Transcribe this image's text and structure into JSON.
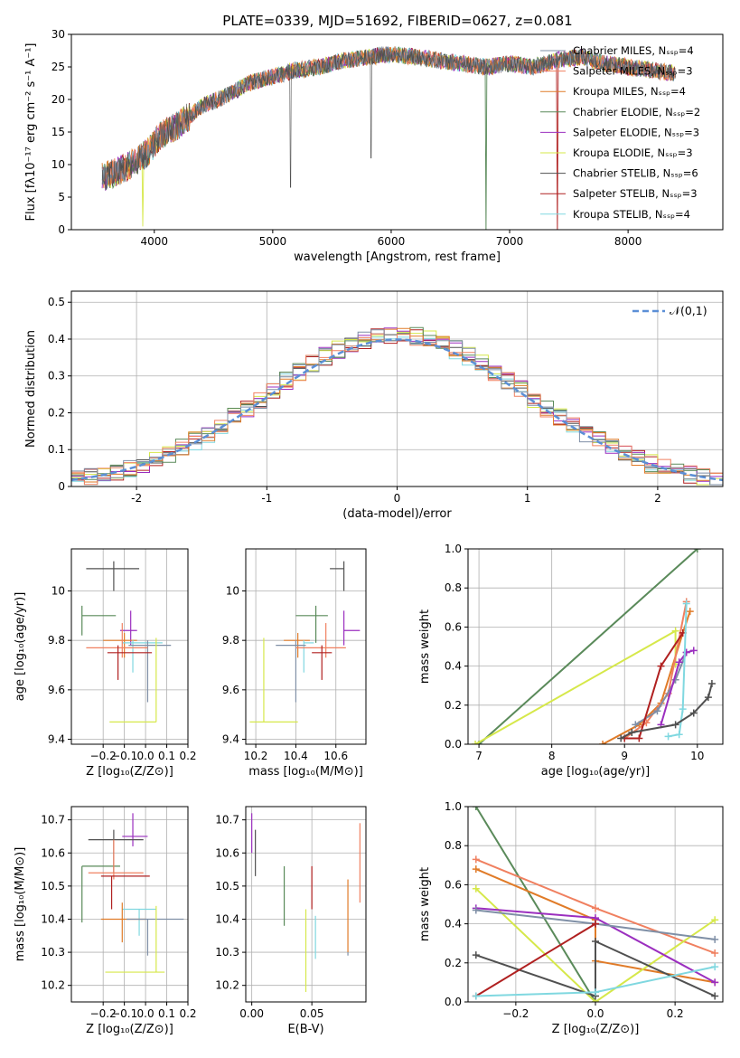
{
  "title": "PLATE=0339, MJD=51692, FIBERID=0627, z=0.081",
  "colors": {
    "grid": "#b0b0b0",
    "series": [
      "#7f8fa6",
      "#f08060",
      "#e07b28",
      "#5a8a5a",
      "#9b2fbf",
      "#d6e84a",
      "#505050",
      "#b02020",
      "#80d8e0"
    ],
    "normal_line": "#5b8fd6"
  },
  "chart_data": [
    {
      "id": "spectrum",
      "type": "line",
      "xlabel": "wavelength [Angstrom, rest frame]",
      "ylabel": "Flux [fλ10⁻¹⁷ erg cm⁻² s⁻¹ A⁻¹]",
      "xlim": [
        3300,
        8800
      ],
      "ylim": [
        0,
        30
      ],
      "xticks": [
        4000,
        5000,
        6000,
        7000,
        8000
      ],
      "yticks": [
        0,
        5,
        10,
        15,
        20,
        25,
        30
      ],
      "legend_placement": "upper right",
      "series": [
        {
          "name": "Chabrier MILES, N_SSP=4"
        },
        {
          "name": "Salpeter MILES, N_SSP=3"
        },
        {
          "name": "Kroupa MILES, N_SSP=4"
        },
        {
          "name": "Chabrier ELODIE, N_SSP=2"
        },
        {
          "name": "Salpeter ELODIE, N_SSP=3"
        },
        {
          "name": "Kroupa ELODIE, N_SSP=3"
        },
        {
          "name": "Chabrier STELIB, N_SSP=6"
        },
        {
          "name": "Salpeter STELIB, N_SSP=3"
        },
        {
          "name": "Kroupa STELIB, N_SSP=4"
        }
      ],
      "continuum": [
        [
          3560,
          8
        ],
        [
          3700,
          9
        ],
        [
          3850,
          10.5
        ],
        [
          3950,
          12
        ],
        [
          4050,
          14.5
        ],
        [
          4200,
          16
        ],
        [
          4400,
          19
        ],
        [
          4600,
          20.5
        ],
        [
          4800,
          22.5
        ],
        [
          5000,
          23.5
        ],
        [
          5200,
          24.5
        ],
        [
          5400,
          25
        ],
        [
          5600,
          26
        ],
        [
          5800,
          26.5
        ],
        [
          6000,
          27
        ],
        [
          6200,
          26.5
        ],
        [
          6400,
          26
        ],
        [
          6600,
          25.5
        ],
        [
          6800,
          25
        ],
        [
          7000,
          25.5
        ],
        [
          7200,
          25
        ],
        [
          7400,
          26
        ],
        [
          7600,
          26.5
        ],
        [
          7800,
          25.5
        ],
        [
          8000,
          25
        ],
        [
          8200,
          24.5
        ],
        [
          8400,
          24
        ]
      ],
      "data_line_range": [
        3560,
        8400
      ]
    },
    {
      "id": "residual_hist",
      "type": "area",
      "xlabel": "(data-model)/error",
      "ylabel": "Normed distribution",
      "xlim": [
        -2.5,
        2.5
      ],
      "ylim": [
        0,
        0.53
      ],
      "xticks": [
        -2,
        -1,
        0,
        1,
        2
      ],
      "yticks": [
        0.0,
        0.1,
        0.2,
        0.3,
        0.4,
        0.5
      ],
      "legend": "𝒩(0,1)",
      "legend_placement": "upper right",
      "bin_width": 0.1,
      "bins_from": -2.5,
      "bins_to": 2.5
    },
    {
      "id": "age_vs_Z",
      "type": "scatter",
      "xlabel": "Z [log₁₀(Z/Z⊙)]",
      "ylabel": "age  [log₁₀(age/yr)]",
      "xlim": [
        -0.35,
        0.2
      ],
      "ylim": [
        9.38,
        10.17
      ],
      "xticks": [
        -0.2,
        -0.1,
        0.0,
        0.1,
        0.2
      ],
      "xticklabels": [
        "−0.2",
        "−0.1",
        "0.0",
        "0.1",
        "0.2"
      ],
      "yticks": [
        9.4,
        9.6,
        9.8,
        10.0
      ],
      "errorbars": [
        {
          "color": 6,
          "x": -0.15,
          "xerr": [
            0.13,
            0.12
          ],
          "y": 10.09,
          "yerr": [
            0.09,
            0.03
          ]
        },
        {
          "color": 3,
          "x": -0.3,
          "xerr": [
            0,
            0.16
          ],
          "y": 9.9,
          "yerr": [
            0.08,
            0.04
          ]
        },
        {
          "color": 4,
          "x": -0.07,
          "xerr": [
            0.05,
            0.03
          ],
          "y": 9.84,
          "yerr": [
            0.06,
            0.08
          ]
        },
        {
          "color": 2,
          "x": -0.1,
          "xerr": [
            0.1,
            0.06
          ],
          "y": 9.8,
          "yerr": [
            0.07,
            0.03
          ]
        },
        {
          "color": 8,
          "x": -0.06,
          "xerr": [
            0.05,
            0.14
          ],
          "y": 9.79,
          "yerr": [
            0.12,
            0.01
          ]
        },
        {
          "color": 0,
          "x": 0.01,
          "xerr": [
            0.09,
            0.11
          ],
          "y": 9.78,
          "yerr": [
            0.23,
            0.02
          ]
        },
        {
          "color": 1,
          "x": -0.11,
          "xerr": [
            0.17,
            0.12
          ],
          "y": 9.77,
          "yerr": [
            0.04,
            0.1
          ]
        },
        {
          "color": 7,
          "x": -0.13,
          "xerr": [
            0.05,
            0.16
          ],
          "y": 9.75,
          "yerr": [
            0.11,
            0.03
          ]
        },
        {
          "color": 5,
          "x": 0.05,
          "xerr": [
            0.22,
            0
          ],
          "y": 9.47,
          "yerr": [
            0,
            0.34
          ]
        }
      ]
    },
    {
      "id": "age_vs_mass",
      "type": "scatter",
      "xlabel": "mass [log₁₀(M/M⊙)]",
      "xlim": [
        10.15,
        10.75
      ],
      "ylim": [
        9.38,
        10.17
      ],
      "xticks": [
        10.2,
        10.4,
        10.6
      ],
      "yticks": [
        9.4,
        9.6,
        9.8,
        10.0
      ],
      "errorbars": [
        {
          "color": 6,
          "x": 10.64,
          "xerr": [
            0.07,
            0.0
          ],
          "y": 10.09,
          "yerr": [
            0.09,
            0.03
          ]
        },
        {
          "color": 3,
          "x": 10.5,
          "xerr": [
            0.1,
            0.06
          ],
          "y": 9.9,
          "yerr": [
            0.11,
            0.04
          ]
        },
        {
          "color": 4,
          "x": 10.64,
          "xerr": [
            0.0,
            0.08
          ],
          "y": 9.84,
          "yerr": [
            0.06,
            0.08
          ]
        },
        {
          "color": 2,
          "x": 10.41,
          "xerr": [
            0.07,
            0.06
          ],
          "y": 9.8,
          "yerr": [
            0.07,
            0.03
          ]
        },
        {
          "color": 8,
          "x": 10.44,
          "xerr": [
            0.0,
            0.05
          ],
          "y": 9.79,
          "yerr": [
            0.12,
            0.01
          ]
        },
        {
          "color": 0,
          "x": 10.4,
          "xerr": [
            0.1,
            0.05
          ],
          "y": 9.78,
          "yerr": [
            0.23,
            0.02
          ]
        },
        {
          "color": 1,
          "x": 10.55,
          "xerr": [
            0.15,
            0.1
          ],
          "y": 9.77,
          "yerr": [
            0.04,
            0.1
          ]
        },
        {
          "color": 7,
          "x": 10.53,
          "xerr": [
            0.05,
            0.05
          ],
          "y": 9.75,
          "yerr": [
            0.11,
            0.03
          ]
        },
        {
          "color": 5,
          "x": 10.24,
          "xerr": [
            0.07,
            0.17
          ],
          "y": 9.47,
          "yerr": [
            0,
            0.34
          ]
        }
      ]
    },
    {
      "id": "massweight_vs_age",
      "type": "line",
      "xlabel": "age  [log₁₀(age/yr)]",
      "ylabel": "mass weight",
      "xlim": [
        6.85,
        10.35
      ],
      "ylim": [
        0,
        1
      ],
      "xticks": [
        7,
        8,
        9,
        10
      ],
      "yticks": [
        0.0,
        0.2,
        0.4,
        0.6,
        0.8,
        1.0
      ],
      "series": [
        {
          "color": 3,
          "x": [
            7.0,
            10.0
          ],
          "y": [
            0.0,
            1.0
          ]
        },
        {
          "color": 5,
          "x": [
            6.95,
            9.7,
            9.7
          ],
          "y": [
            0.0,
            0.58,
            0.41
          ]
        },
        {
          "color": 2,
          "x": [
            8.7,
            9.2,
            9.5,
            9.8,
            9.9
          ],
          "y": [
            0.0,
            0.1,
            0.21,
            0.57,
            0.68
          ]
        },
        {
          "color": 1,
          "x": [
            9.0,
            9.3,
            9.6,
            9.85
          ],
          "y": [
            0.03,
            0.11,
            0.26,
            0.73
          ]
        },
        {
          "color": 0,
          "x": [
            9.15,
            9.45,
            9.7,
            9.85
          ],
          "y": [
            0.1,
            0.17,
            0.33,
            0.47
          ]
        },
        {
          "color": 7,
          "x": [
            9.0,
            9.2,
            9.5,
            9.8
          ],
          "y": [
            0.03,
            0.03,
            0.4,
            0.57
          ]
        },
        {
          "color": 4,
          "x": [
            9.5,
            9.75,
            9.85,
            9.95
          ],
          "y": [
            0.1,
            0.42,
            0.47,
            0.48
          ]
        },
        {
          "color": 8,
          "x": [
            9.6,
            9.75,
            9.8,
            9.85
          ],
          "y": [
            0.04,
            0.05,
            0.18,
            0.72
          ]
        },
        {
          "color": 6,
          "x": [
            8.95,
            9.1,
            9.7,
            9.95,
            10.15,
            10.2
          ],
          "y": [
            0.03,
            0.06,
            0.1,
            0.16,
            0.24,
            0.31
          ]
        }
      ]
    },
    {
      "id": "mass_vs_Z",
      "type": "scatter",
      "xlabel": "Z [log₁₀(Z/Z⊙)]",
      "ylabel": "mass [log₁₀(M/M⊙)]",
      "xlim": [
        -0.35,
        0.2
      ],
      "ylim": [
        10.15,
        10.74
      ],
      "xticks": [
        -0.2,
        -0.1,
        0.0,
        0.1,
        0.2
      ],
      "xticklabels": [
        "−0.2",
        "−0.1",
        "0.0",
        "0.1",
        "0.2"
      ],
      "yticks": [
        10.2,
        10.3,
        10.4,
        10.5,
        10.6,
        10.7
      ],
      "errorbars": [
        {
          "color": 4,
          "x": -0.06,
          "xerr": [
            0.05,
            0.07
          ],
          "y": 10.65,
          "yerr": [
            0.03,
            0.07
          ]
        },
        {
          "color": 6,
          "x": -0.15,
          "xerr": [
            0.12,
            0.14
          ],
          "y": 10.64,
          "yerr": [
            0.1,
            0.03
          ]
        },
        {
          "color": 3,
          "x": -0.3,
          "xerr": [
            0,
            0.18
          ],
          "y": 10.56,
          "yerr": [
            0.17,
            0.0
          ]
        },
        {
          "color": 1,
          "x": -0.15,
          "xerr": [
            0.12,
            0.14
          ],
          "y": 10.54,
          "yerr": [
            0.02,
            0.1
          ]
        },
        {
          "color": 7,
          "x": -0.16,
          "xerr": [
            0.05,
            0.18
          ],
          "y": 10.53,
          "yerr": [
            0.1,
            0.0
          ]
        },
        {
          "color": 8,
          "x": -0.03,
          "xerr": [
            0.08,
            0.08
          ],
          "y": 10.43,
          "yerr": [
            0.08,
            0.0
          ]
        },
        {
          "color": 2,
          "x": -0.11,
          "xerr": [
            0.1,
            0.11
          ],
          "y": 10.4,
          "yerr": [
            0.07,
            0.05
          ]
        },
        {
          "color": 0,
          "x": 0.01,
          "xerr": [
            0.1,
            0.17
          ],
          "y": 10.4,
          "yerr": [
            0.11,
            0.0
          ]
        },
        {
          "color": 5,
          "x": 0.05,
          "xerr": [
            0.24,
            0.04
          ],
          "y": 10.24,
          "yerr": [
            0,
            0.2
          ]
        }
      ]
    },
    {
      "id": "mass_vs_EBV",
      "type": "scatter",
      "xlabel": "E(B-V)",
      "xlim": [
        -0.005,
        0.095
      ],
      "ylim": [
        10.15,
        10.74
      ],
      "xticks": [
        0.0,
        0.05
      ],
      "xticklabels": [
        "0.00",
        "0.05"
      ],
      "yticks": [
        10.2,
        10.3,
        10.4,
        10.5,
        10.6,
        10.7
      ],
      "errorbars": [
        {
          "color": 4,
          "x": 0.0,
          "y": 10.65,
          "yerr": [
            0.05,
            0.07
          ]
        },
        {
          "color": 6,
          "x": 0.003,
          "y": 10.6,
          "yerr": [
            0.07,
            0.07
          ]
        },
        {
          "color": 3,
          "x": 0.027,
          "y": 10.47,
          "yerr": [
            0.09,
            0.09
          ]
        },
        {
          "color": 7,
          "x": 0.05,
          "y": 10.48,
          "yerr": [
            0.05,
            0.08
          ]
        },
        {
          "color": 5,
          "x": 0.045,
          "y": 10.3,
          "yerr": [
            0.12,
            0.13
          ]
        },
        {
          "color": 8,
          "x": 0.053,
          "y": 10.41,
          "yerr": [
            0.13,
            0.0
          ]
        },
        {
          "color": 2,
          "x": 0.08,
          "y": 10.4,
          "yerr": [
            0.1,
            0.12
          ]
        },
        {
          "color": 0,
          "x": 0.08,
          "y": 10.3,
          "yerr": [
            0.01,
            0.0
          ]
        },
        {
          "color": 1,
          "x": 0.09,
          "y": 10.57,
          "yerr": [
            0.12,
            0.12
          ]
        }
      ]
    },
    {
      "id": "massweight_vs_Z",
      "type": "line",
      "xlabel": "Z [log₁₀(Z/Z⊙)]",
      "ylabel": "mass weight",
      "xlim": [
        -0.32,
        0.32
      ],
      "ylim": [
        0,
        1
      ],
      "xticks": [
        -0.2,
        0.0,
        0.2
      ],
      "xticklabels": [
        "−0.2",
        "0.0",
        "0.2"
      ],
      "yticks": [
        0.0,
        0.2,
        0.4,
        0.6,
        0.8,
        1.0
      ],
      "series": [
        {
          "color": 3,
          "x": [
            -0.3,
            0.0
          ],
          "y": [
            1.0,
            0.0
          ]
        },
        {
          "color": 1,
          "x": [
            -0.3,
            0.0,
            0.3
          ],
          "y": [
            0.73,
            0.48,
            0.25
          ]
        },
        {
          "color": 2,
          "x": [
            -0.3,
            0.0,
            0.0,
            0.3
          ],
          "y": [
            0.68,
            0.42,
            0.21,
            0.1
          ]
        },
        {
          "color": 5,
          "x": [
            -0.3,
            0.0,
            0.3
          ],
          "y": [
            0.58,
            0.0,
            0.42
          ]
        },
        {
          "color": 4,
          "x": [
            -0.3,
            0.0,
            0.3
          ],
          "y": [
            0.48,
            0.43,
            0.1
          ]
        },
        {
          "color": 0,
          "x": [
            -0.3,
            0.0,
            0.3
          ],
          "y": [
            0.47,
            0.4,
            0.32
          ]
        },
        {
          "color": 6,
          "x": [
            -0.3,
            0.0,
            0.0,
            0.3
          ],
          "y": [
            0.24,
            0.03,
            0.31,
            0.03
          ]
        },
        {
          "color": 7,
          "x": [
            -0.3,
            0.0
          ],
          "y": [
            0.03,
            0.4
          ]
        },
        {
          "color": 8,
          "x": [
            -0.3,
            0.0,
            0.3
          ],
          "y": [
            0.03,
            0.05,
            0.18
          ]
        }
      ]
    }
  ]
}
